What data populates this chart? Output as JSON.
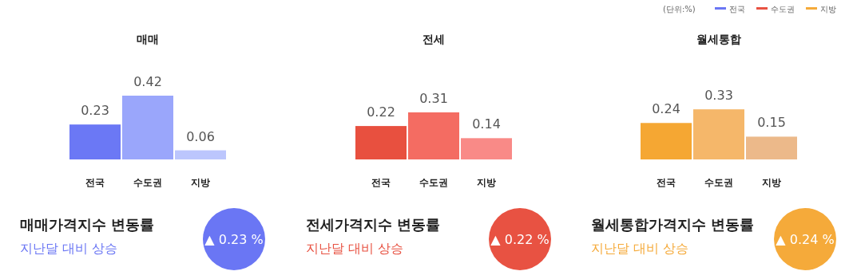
{
  "chart_data": [
    {
      "type": "bar",
      "title": "매매",
      "categories": [
        "전국",
        "수도권",
        "지방"
      ],
      "values": [
        0.23,
        0.42,
        0.06
      ],
      "colors": [
        "#6b78f5",
        "#9aa6fb",
        "#bcc6fd"
      ],
      "data_labels": true,
      "color": "#6a76f4",
      "annotations": [
        "매매가격지수 변동률",
        "지난달 대비 상승",
        "▲ 0.23 %"
      ]
    },
    {
      "type": "bar",
      "title": "전세",
      "categories": [
        "전국",
        "수도권",
        "지방"
      ],
      "values": [
        0.22,
        0.31,
        0.14
      ],
      "colors": [
        "#e8503f",
        "#f46c62",
        "#f98a87"
      ],
      "data_labels": true,
      "color": "#e85242",
      "annotations": [
        "전세가격지수 변동률",
        "지난달 대비 상승",
        "▲ 0.22 %"
      ]
    },
    {
      "type": "bar",
      "title": "월세통합",
      "categories": [
        "전국",
        "수도권",
        "지방"
      ],
      "values": [
        0.24,
        0.33,
        0.15
      ],
      "colors": [
        "#f5a733",
        "#f5b76a",
        "#ecb98a"
      ],
      "data_labels": true,
      "color": "#f5aa3a",
      "annotations": [
        "월세통합가격지수 변동률",
        "지난달 대비 상승",
        "▲ 0.24 %"
      ]
    },
    {
      "type": "other",
      "annotations": [
        "(단위:%)",
        "전국",
        "수도권",
        "지방"
      ],
      "colors": [
        "#6a76f4",
        "#e85242",
        "#f5aa3a"
      ]
    }
  ]
}
